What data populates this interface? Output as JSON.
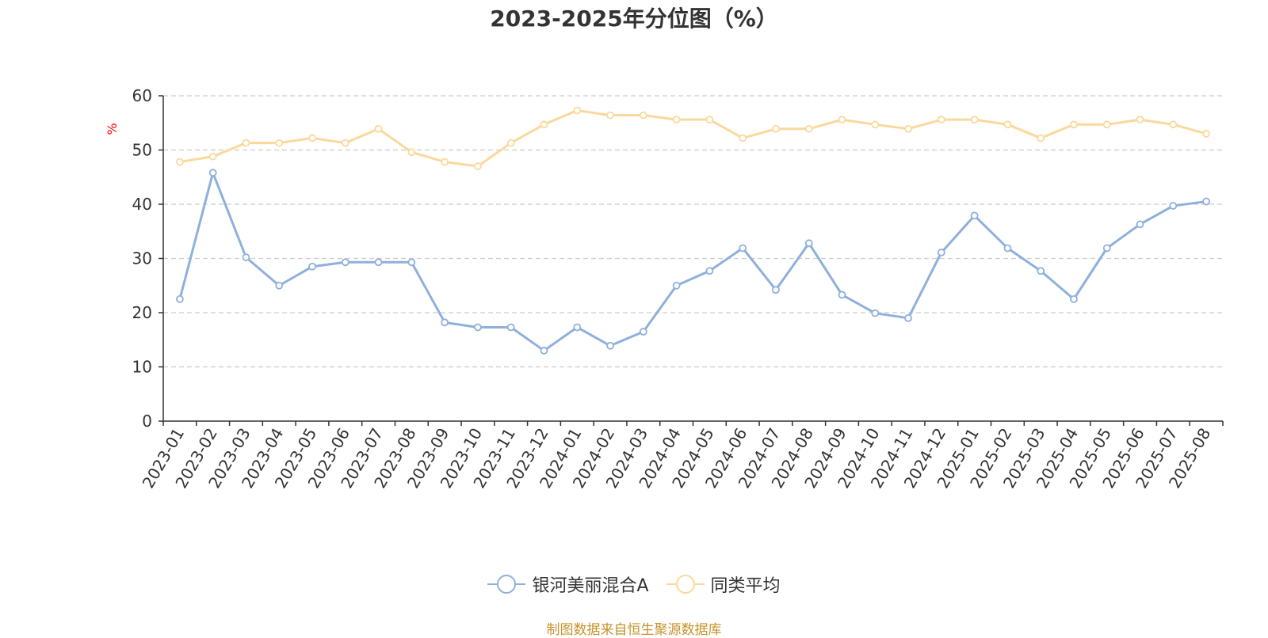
{
  "chart_data": {
    "type": "line",
    "title": "2023-2025年分位图（%）",
    "ylabel": "%",
    "ylim": [
      0,
      60
    ],
    "yticks": [
      0,
      10,
      20,
      30,
      40,
      50,
      60
    ],
    "grid": true,
    "legend_position": "bottom",
    "categories": [
      "2023-01",
      "2023-02",
      "2023-03",
      "2023-04",
      "2023-05",
      "2023-06",
      "2023-07",
      "2023-08",
      "2023-09",
      "2023-10",
      "2023-11",
      "2023-12",
      "2024-01",
      "2024-02",
      "2024-03",
      "2024-04",
      "2024-05",
      "2024-06",
      "2024-07",
      "2024-08",
      "2024-09",
      "2024-10",
      "2024-11",
      "2024-12",
      "2025-01",
      "2025-02",
      "2025-03",
      "2025-04",
      "2025-05",
      "2025-06",
      "2025-07",
      "2025-08"
    ],
    "series": [
      {
        "name": "银河美丽混合A",
        "color": "#8eb0dc",
        "values": [
          22.5,
          45.8,
          30.2,
          25.0,
          28.5,
          29.3,
          29.3,
          29.3,
          18.2,
          17.3,
          17.3,
          13.0,
          17.3,
          13.9,
          16.5,
          25.0,
          27.7,
          31.9,
          24.2,
          32.8,
          23.3,
          19.9,
          19.0,
          31.1,
          37.9,
          31.9,
          27.7,
          22.5,
          31.9,
          36.3,
          39.7,
          40.5
        ]
      },
      {
        "name": "同类平均",
        "color": "#fbd89c",
        "values": [
          47.8,
          48.8,
          51.3,
          51.3,
          52.2,
          51.3,
          53.9,
          49.6,
          47.8,
          47.0,
          51.3,
          54.7,
          57.3,
          56.4,
          56.4,
          55.6,
          55.6,
          52.2,
          53.9,
          53.9,
          55.6,
          54.7,
          53.9,
          55.6,
          55.6,
          54.7,
          52.2,
          54.7,
          54.7,
          55.6,
          54.7,
          53.0
        ]
      }
    ]
  },
  "source_text": "制图数据来自恒生聚源数据库",
  "colors": {
    "axis": "#333333",
    "grid": "#cccccc",
    "ylabel": "#ff0000",
    "source": "#c7932c"
  }
}
